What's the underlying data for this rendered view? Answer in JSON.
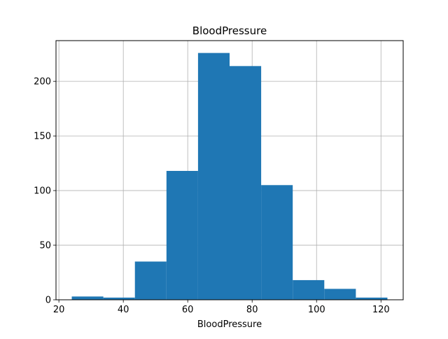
{
  "chart_data": {
    "type": "bar",
    "title": "BloodPressure",
    "xlabel": "BloodPressure",
    "ylabel": "",
    "bins": [
      {
        "x0": 24.0,
        "x1": 33.8,
        "count": 3
      },
      {
        "x0": 33.8,
        "x1": 43.6,
        "count": 2
      },
      {
        "x0": 43.6,
        "x1": 53.4,
        "count": 35
      },
      {
        "x0": 53.4,
        "x1": 63.2,
        "count": 118
      },
      {
        "x0": 63.2,
        "x1": 73.0,
        "count": 226
      },
      {
        "x0": 73.0,
        "x1": 82.8,
        "count": 214
      },
      {
        "x0": 82.8,
        "x1": 92.6,
        "count": 105
      },
      {
        "x0": 92.6,
        "x1": 102.4,
        "count": 18
      },
      {
        "x0": 102.4,
        "x1": 112.2,
        "count": 10
      },
      {
        "x0": 112.2,
        "x1": 122.0,
        "count": 2
      }
    ],
    "xlim": [
      19.1,
      126.9
    ],
    "ylim": [
      0,
      237.3
    ],
    "xticks": [
      20,
      40,
      60,
      80,
      100,
      120
    ],
    "yticks": [
      0,
      50,
      100,
      150,
      200
    ],
    "grid": true,
    "bar_color": "#1f77b4"
  }
}
